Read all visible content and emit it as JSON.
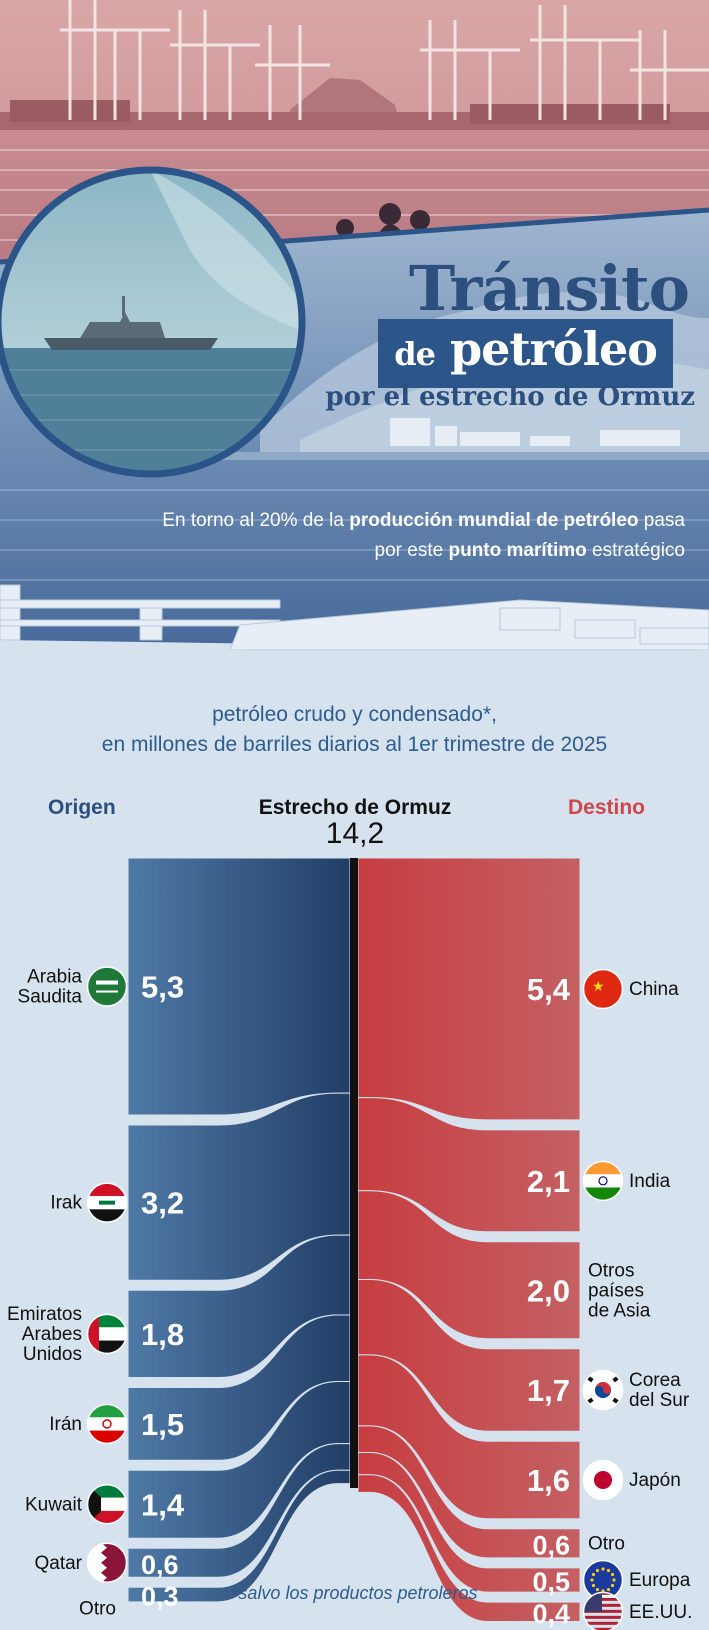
{
  "header": {
    "title_line1": "Tránsito",
    "title_line2_a": "de",
    "title_line2_b": "petróleo",
    "title_line3": "por el estrecho de Ormuz",
    "subtitle_part1": "En torno al 20% de la ",
    "subtitle_bold1": "producción mundial de petróleo",
    "subtitle_part2": " pasa",
    "subtitle_part3": "por este ",
    "subtitle_bold2": "punto marítimo",
    "subtitle_part4": " estratégico"
  },
  "caption_line1": "petróleo crudo y condensado*,",
  "caption_line2": "en millones de barriles diarios al 1er trimestre de 2025",
  "footnote": "*salvo los productos petroleros",
  "colors": {
    "origin": "#2f5a86",
    "destination": "#c94649",
    "title": "#2c4f7e",
    "background": "#d6e2ee"
  },
  "chart_data": {
    "type": "sankey",
    "unit": "millones de barriles diarios",
    "origin_label": "Origen",
    "destination_label": "Destino",
    "center_label": "Estrecho de Ormuz",
    "center_value": "14,2",
    "total": 14.2,
    "origins": [
      {
        "name": "Arabia Saudita",
        "value": 5.3,
        "label": "5,3",
        "icon": "saudi-arabia-flag-icon"
      },
      {
        "name": "Irak",
        "value": 3.2,
        "label": "3,2",
        "icon": "iraq-flag-icon"
      },
      {
        "name": "Emiratos Arabes Unidos",
        "value": 1.8,
        "label": "1,8",
        "icon": "uae-flag-icon"
      },
      {
        "name": "Irán",
        "value": 1.5,
        "label": "1,5",
        "icon": "iran-flag-icon"
      },
      {
        "name": "Kuwait",
        "value": 1.4,
        "label": "1,4",
        "icon": "kuwait-flag-icon"
      },
      {
        "name": "Qatar",
        "value": 0.6,
        "label": "0,6",
        "icon": "qatar-flag-icon"
      },
      {
        "name": "Otro",
        "value": 0.3,
        "label": "0,3",
        "icon": ""
      }
    ],
    "destinations": [
      {
        "name": "China",
        "value": 5.4,
        "label": "5,4",
        "icon": "china-flag-icon"
      },
      {
        "name": "India",
        "value": 2.1,
        "label": "2,1",
        "icon": "india-flag-icon"
      },
      {
        "name": "Otros países de Asia",
        "value": 2.0,
        "label": "2,0",
        "icon": ""
      },
      {
        "name": "Corea del Sur",
        "value": 1.7,
        "label": "1,7",
        "icon": "south-korea-flag-icon"
      },
      {
        "name": "Japón",
        "value": 1.6,
        "label": "1,6",
        "icon": "japan-flag-icon"
      },
      {
        "name": "Otro",
        "value": 0.6,
        "label": "0,6",
        "icon": ""
      },
      {
        "name": "Europa",
        "value": 0.5,
        "label": "0,5",
        "icon": "eu-flag-icon"
      },
      {
        "name": "EE.UU.",
        "value": 0.4,
        "label": "0,4",
        "icon": "usa-flag-icon"
      }
    ]
  }
}
